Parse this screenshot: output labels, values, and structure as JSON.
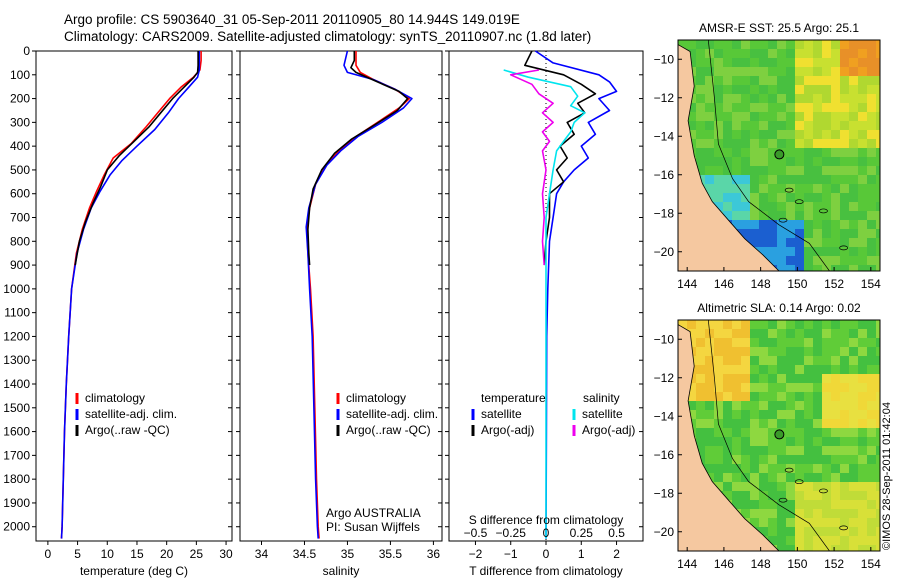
{
  "title_line1": "Argo profile: CS 5903640_31 05-Sep-2011 20110905_80 14.944S 149.019E",
  "title_line2": "Climatology: CARS2009. Satellite-adjusted climatology: synTS_20110907.nc (1.8d later)",
  "stamp": "©IMOS 28-Sep-2011 01:42:04",
  "colors": {
    "climatology": "#ff0000",
    "satellite": "#0000ff",
    "argo": "#000000",
    "sal_satellite": "#00e5ee",
    "sal_argo": "#ee00ee"
  },
  "chart_data": [
    {
      "type": "line",
      "panel": "temperature",
      "xlabel": "temperature (deg C)",
      "xlim": [
        -2,
        31
      ],
      "xticks": [
        0,
        5,
        10,
        15,
        20,
        25,
        30
      ],
      "xtick_labels": [
        "0",
        "5",
        "10",
        "15",
        "20",
        "25",
        "30"
      ],
      "ylim": [
        0,
        2060
      ],
      "yticks": [
        0,
        100,
        200,
        300,
        400,
        500,
        600,
        700,
        800,
        900,
        1000,
        1100,
        1200,
        1300,
        1400,
        1500,
        1600,
        1700,
        1800,
        1900,
        2000
      ],
      "ytick_labels": [
        "0",
        "100",
        "200",
        "300",
        "400",
        "500",
        "600",
        "700",
        "800",
        "900",
        "1000",
        "1100",
        "1200",
        "1300",
        "1400",
        "1500",
        "1600",
        "1700",
        "1800",
        "1900",
        "2000"
      ],
      "legend": [
        "climatology",
        "satellite-adj. clim.",
        "Argo(..raw -QC)"
      ],
      "legend_position": "lower-left",
      "series": [
        {
          "name": "climatology",
          "color_key": "climatology",
          "points": [
            [
              25.8,
              0
            ],
            [
              25.8,
              40
            ],
            [
              25.6,
              80
            ],
            [
              24.5,
              110
            ],
            [
              22.5,
              150
            ],
            [
              20.5,
              200
            ],
            [
              18.5,
              260
            ],
            [
              16.5,
              320
            ],
            [
              14,
              390
            ],
            [
              11,
              450
            ],
            [
              9.5,
              520
            ],
            [
              8.2,
              590
            ],
            [
              7,
              660
            ],
            [
              5.8,
              750
            ],
            [
              4.8,
              850
            ],
            [
              4,
              1000
            ],
            [
              3.5,
              1200
            ],
            [
              3.1,
              1400
            ],
            [
              2.8,
              1600
            ],
            [
              2.6,
              1800
            ],
            [
              2.4,
              2000
            ],
            [
              2.3,
              2050
            ]
          ]
        },
        {
          "name": "satellite-adj. clim.",
          "color_key": "satellite",
          "points": [
            [
              25.5,
              0
            ],
            [
              25.5,
              40
            ],
            [
              25.5,
              80
            ],
            [
              25.2,
              110
            ],
            [
              23.8,
              150
            ],
            [
              22,
              200
            ],
            [
              20.3,
              260
            ],
            [
              18,
              330
            ],
            [
              15,
              400
            ],
            [
              12.5,
              460
            ],
            [
              10.5,
              520
            ],
            [
              8.8,
              590
            ],
            [
              7.3,
              660
            ],
            [
              6,
              750
            ],
            [
              4.9,
              850
            ],
            [
              4,
              1000
            ],
            [
              3.5,
              1200
            ],
            [
              3.1,
              1400
            ],
            [
              2.8,
              1600
            ],
            [
              2.6,
              1800
            ],
            [
              2.4,
              2000
            ],
            [
              2.3,
              2050
            ]
          ]
        },
        {
          "name": "Argo(..raw -QC)",
          "color_key": "argo",
          "points": [
            [
              25.3,
              0
            ],
            [
              25.3,
              60
            ],
            [
              25.2,
              90
            ],
            [
              24.6,
              110
            ],
            [
              23,
              150
            ],
            [
              21,
              200
            ],
            [
              19,
              260
            ],
            [
              17,
              320
            ],
            [
              14.5,
              380
            ],
            [
              12,
              440
            ],
            [
              10,
              500
            ],
            [
              8.9,
              570
            ],
            [
              7.6,
              640
            ],
            [
              6.3,
              720
            ],
            [
              5.3,
              800
            ],
            [
              4.6,
              900
            ]
          ]
        }
      ]
    },
    {
      "type": "line",
      "panel": "salinity",
      "xlabel": "salinity",
      "xlim": [
        33.75,
        36.1
      ],
      "xticks": [
        34,
        34.5,
        35,
        35.5,
        36
      ],
      "xtick_labels": [
        "34",
        "34.5",
        "35",
        "35.5",
        "36"
      ],
      "ylim": [
        0,
        2060
      ],
      "legend": [
        "climatology",
        "satellite-adj. clim.",
        "Argo(..raw -QC)"
      ],
      "legend_position": "lower-right",
      "annotation": [
        "Argo AUSTRALIA",
        "PI: Susan Wijffels"
      ],
      "series": [
        {
          "name": "climatology",
          "color_key": "climatology",
          "points": [
            [
              35.1,
              0
            ],
            [
              35.1,
              60
            ],
            [
              35.15,
              90
            ],
            [
              35.3,
              120
            ],
            [
              35.55,
              160
            ],
            [
              35.72,
              200
            ],
            [
              35.6,
              240
            ],
            [
              35.35,
              300
            ],
            [
              35.1,
              360
            ],
            [
              34.9,
              420
            ],
            [
              34.75,
              480
            ],
            [
              34.63,
              560
            ],
            [
              34.56,
              660
            ],
            [
              34.53,
              740
            ],
            [
              34.54,
              850
            ],
            [
              34.57,
              1000
            ],
            [
              34.6,
              1200
            ],
            [
              34.62,
              1500
            ],
            [
              34.64,
              1800
            ],
            [
              34.66,
              2000
            ],
            [
              34.67,
              2050
            ]
          ]
        },
        {
          "name": "satellite-adj. clim.",
          "color_key": "satellite",
          "points": [
            [
              35.0,
              0
            ],
            [
              34.96,
              60
            ],
            [
              35.0,
              90
            ],
            [
              35.3,
              120
            ],
            [
              35.55,
              160
            ],
            [
              35.75,
              200
            ],
            [
              35.65,
              240
            ],
            [
              35.4,
              300
            ],
            [
              35.12,
              360
            ],
            [
              34.92,
              420
            ],
            [
              34.76,
              480
            ],
            [
              34.63,
              560
            ],
            [
              34.55,
              660
            ],
            [
              34.52,
              740
            ],
            [
              34.54,
              850
            ],
            [
              34.56,
              1000
            ],
            [
              34.59,
              1200
            ],
            [
              34.61,
              1500
            ],
            [
              34.63,
              1800
            ],
            [
              34.65,
              2000
            ],
            [
              34.66,
              2050
            ]
          ]
        },
        {
          "name": "Argo(..raw -QC)",
          "color_key": "argo",
          "points": [
            [
              35.08,
              0
            ],
            [
              35.08,
              40
            ],
            [
              35.04,
              70
            ],
            [
              35.1,
              90
            ],
            [
              35.35,
              130
            ],
            [
              35.6,
              170
            ],
            [
              35.7,
              200
            ],
            [
              35.58,
              250
            ],
            [
              35.32,
              310
            ],
            [
              35.05,
              370
            ],
            [
              34.85,
              430
            ],
            [
              34.7,
              500
            ],
            [
              34.6,
              580
            ],
            [
              34.56,
              660
            ],
            [
              34.54,
              750
            ],
            [
              34.55,
              850
            ],
            [
              34.56,
              900
            ]
          ]
        }
      ]
    },
    {
      "type": "line",
      "panel": "difference",
      "xlabel": "T difference from climatology",
      "xlabel_top": "S difference from climatology",
      "xlim": [
        -2.75,
        2.75
      ],
      "xticks": [
        -2,
        -1,
        0,
        1,
        2
      ],
      "xtick_labels": [
        "−2",
        "−1",
        "0",
        "1",
        "2"
      ],
      "xticks_top": [
        -2,
        -1,
        0,
        1,
        2
      ],
      "xtick_labels_top": [
        "−0.5",
        "−0.25",
        "0",
        "0.25",
        "0.5"
      ],
      "ylim": [
        0,
        2060
      ],
      "legend": [
        "temperature",
        "satellite",
        "Argo(-adj)",
        "salinity",
        "satellite",
        "Argo(-adj)"
      ],
      "legend_position": "lower-center",
      "series": [
        {
          "name": "temperature satellite",
          "color_key": "satellite",
          "points": [
            [
              -0.3,
              0
            ],
            [
              0.2,
              50
            ],
            [
              1.5,
              100
            ],
            [
              1.8,
              130
            ],
            [
              2.0,
              170
            ],
            [
              1.5,
              200
            ],
            [
              1.8,
              250
            ],
            [
              1.2,
              300
            ],
            [
              1.4,
              350
            ],
            [
              1.0,
              400
            ],
            [
              1.2,
              450
            ],
            [
              0.8,
              500
            ],
            [
              0.5,
              550
            ],
            [
              0.3,
              600
            ],
            [
              0.2,
              700
            ],
            [
              0.1,
              800
            ],
            [
              0.05,
              1000
            ],
            [
              0.02,
              1200
            ],
            [
              0.01,
              1600
            ],
            [
              0,
              2050
            ]
          ]
        },
        {
          "name": "temperature Argo(-adj)",
          "color_key": "argo",
          "points": [
            [
              -0.4,
              0
            ],
            [
              -0.6,
              60
            ],
            [
              0.5,
              100
            ],
            [
              1.0,
              140
            ],
            [
              1.4,
              180
            ],
            [
              0.9,
              220
            ],
            [
              1.1,
              260
            ],
            [
              0.6,
              300
            ],
            [
              0.8,
              350
            ],
            [
              0.4,
              400
            ],
            [
              0.6,
              450
            ],
            [
              0.3,
              500
            ],
            [
              0.5,
              550
            ],
            [
              0.1,
              600
            ],
            [
              0.1,
              700
            ],
            [
              0,
              800
            ],
            [
              -0.05,
              900
            ]
          ]
        },
        {
          "name": "salinity satellite",
          "color_key": "sal_satellite",
          "points": [
            [
              -1.2,
              80
            ],
            [
              -0.5,
              110
            ],
            [
              0.7,
              150
            ],
            [
              0.9,
              190
            ],
            [
              0.7,
              230
            ],
            [
              1.1,
              260
            ],
            [
              0.8,
              300
            ],
            [
              0.7,
              340
            ],
            [
              0.5,
              380
            ],
            [
              0.3,
              420
            ],
            [
              0.2,
              500
            ],
            [
              0.1,
              600
            ],
            [
              0,
              700
            ],
            [
              0,
              1000
            ],
            [
              0,
              2050
            ]
          ]
        },
        {
          "name": "salinity Argo(-adj)",
          "color_key": "sal_argo",
          "points": [
            [
              -0.2,
              80
            ],
            [
              -1.0,
              100
            ],
            [
              -0.4,
              140
            ],
            [
              -0.2,
              180
            ],
            [
              0.2,
              220
            ],
            [
              -0.1,
              260
            ],
            [
              0.2,
              300
            ],
            [
              -0.1,
              340
            ],
            [
              0.1,
              380
            ],
            [
              -0.1,
              420
            ],
            [
              0,
              500
            ],
            [
              -0.1,
              600
            ],
            [
              -0.05,
              700
            ],
            [
              -0.1,
              800
            ],
            [
              -0.05,
              900
            ]
          ]
        }
      ]
    },
    {
      "type": "heatmap",
      "panel": "sst_map",
      "title": "AMSR-E SST: 25.5 Argo: 25.1",
      "xticks": [
        144,
        146,
        148,
        150,
        152,
        154
      ],
      "xtick_labels": [
        "144",
        "146",
        "148",
        "150",
        "152",
        "154"
      ],
      "yticks": [
        -10,
        -12,
        -14,
        -16,
        -18,
        -20
      ],
      "ytick_labels": [
        "−10",
        "−12",
        "−14",
        "−16",
        "−18",
        "−20"
      ],
      "xlim": [
        143.5,
        154.5
      ],
      "ylim": [
        -21,
        -9
      ],
      "profile_location": [
        149.019,
        -14.944
      ]
    },
    {
      "type": "heatmap",
      "panel": "sla_map",
      "title": "Altimetric SLA: 0.14 Argo: 0.02",
      "xticks": [
        144,
        146,
        148,
        150,
        152,
        154
      ],
      "xtick_labels": [
        "144",
        "146",
        "148",
        "150",
        "152",
        "154"
      ],
      "yticks": [
        -10,
        -12,
        -14,
        -16,
        -18,
        -20
      ],
      "ytick_labels": [
        "−10",
        "−12",
        "−14",
        "−16",
        "−18",
        "−20"
      ],
      "xlim": [
        143.5,
        154.5
      ],
      "ylim": [
        -21,
        -9
      ],
      "profile_location": [
        149.019,
        -14.944
      ]
    }
  ]
}
